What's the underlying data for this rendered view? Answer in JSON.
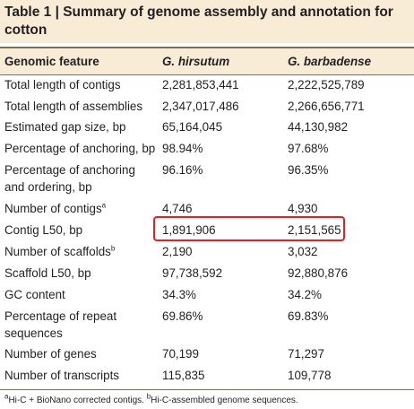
{
  "title": "Table 1 | Summary of genome assembly and annotation for cotton",
  "columns": [
    "Genomic feature",
    "G. hirsutum",
    "G. barbadense"
  ],
  "rows": [
    {
      "feature": "Total length of contigs",
      "hirsutum": "2,281,853,441",
      "barbadense": "2,222,525,789"
    },
    {
      "feature": "Total length of assemblies",
      "hirsutum": "2,347,017,486",
      "barbadense": "2,266,656,771"
    },
    {
      "feature": "Estimated gap size, bp",
      "hirsutum": "65,164,045",
      "barbadense": "44,130,982"
    },
    {
      "feature": "Percentage of anchoring, bp",
      "hirsutum": "98.94%",
      "barbadense": "97.68%"
    },
    {
      "feature_line1": "Percentage of anchoring",
      "feature_line2": "and ordering, bp",
      "hirsutum": "96.16%",
      "barbadense": "96.35%"
    },
    {
      "feature": "Number of contigs",
      "feature_sup": "a",
      "hirsutum": "4,746",
      "barbadense": "4,930"
    },
    {
      "feature": "Contig L50, bp",
      "hirsutum": "1,891,906",
      "barbadense": "2,151,565"
    },
    {
      "feature": "Number of scaffolds",
      "feature_sup": "b",
      "hirsutum": "2,190",
      "barbadense": "3,032"
    },
    {
      "feature": "Scaffold L50, bp",
      "hirsutum": "97,738,592",
      "barbadense": "92,880,876"
    },
    {
      "feature": "GC content",
      "hirsutum": "34.3%",
      "barbadense": "34.2%"
    },
    {
      "feature_line1": "Percentage of repeat",
      "feature_line2": "sequences",
      "hirsutum": "69.86%",
      "barbadense": "69.83%"
    },
    {
      "feature": "Number of genes",
      "hirsutum": "70,199",
      "barbadense": "71,297"
    },
    {
      "feature": "Number of transcripts",
      "hirsutum": "115,835",
      "barbadense": "109,778"
    }
  ],
  "footnote": {
    "a_mark": "a",
    "a_text": "Hi-C + BioNano corrected contigs. ",
    "b_mark": "b",
    "b_text": "Hi-C-assembled genome sequences."
  },
  "colors": {
    "band": "#f8ecd6",
    "rule": "#7a6c5e",
    "highlight": "#ee1c1c",
    "text": "#231f20"
  }
}
